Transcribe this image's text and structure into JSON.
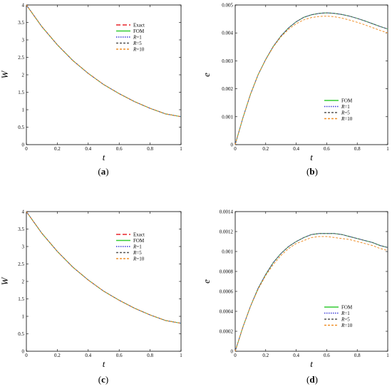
{
  "chart_data": [
    {
      "type": "line",
      "panel": "(a)",
      "xlabel": "t",
      "ylabel": "W",
      "xlim": [
        0,
        1
      ],
      "ylim": [
        0,
        4
      ],
      "xticks": [
        "0",
        "0.2",
        "0.4",
        "0.6",
        "0.8",
        "1"
      ],
      "yticks": [
        "0",
        "0.5",
        "1",
        "1.5",
        "2",
        "2.5",
        "3",
        "3.5",
        "4"
      ],
      "legend_position": "right-middle",
      "x": [
        0,
        0.1,
        0.2,
        0.3,
        0.4,
        0.5,
        0.6,
        0.7,
        0.8,
        0.9,
        1
      ],
      "series": [
        {
          "name": "Exact",
          "color": "#e8242a",
          "dash": "long-dash",
          "values": [
            4.0,
            3.38,
            2.86,
            2.41,
            2.04,
            1.72,
            1.46,
            1.23,
            1.04,
            0.88,
            0.8
          ]
        },
        {
          "name": "FOM",
          "color": "#33cc33",
          "dash": "solid",
          "values": [
            4.0,
            3.38,
            2.86,
            2.41,
            2.04,
            1.72,
            1.46,
            1.23,
            1.04,
            0.88,
            0.8
          ]
        },
        {
          "name": "R=1",
          "color": "#3a3ad6",
          "dash": "dot",
          "values": [
            4.0,
            3.38,
            2.86,
            2.41,
            2.04,
            1.72,
            1.46,
            1.23,
            1.04,
            0.88,
            0.8
          ]
        },
        {
          "name": "R=5",
          "color": "#555555",
          "dash": "dash",
          "values": [
            4.0,
            3.38,
            2.86,
            2.41,
            2.04,
            1.72,
            1.46,
            1.23,
            1.04,
            0.88,
            0.8
          ]
        },
        {
          "name": "R=10",
          "color": "#f0902a",
          "dash": "dash",
          "values": [
            4.0,
            3.38,
            2.86,
            2.41,
            2.04,
            1.72,
            1.46,
            1.23,
            1.04,
            0.88,
            0.8
          ]
        }
      ]
    },
    {
      "type": "line",
      "panel": "(b)",
      "xlabel": "t",
      "ylabel": "e",
      "xlim": [
        0,
        1
      ],
      "ylim": [
        0,
        0.005
      ],
      "xticks": [
        "0",
        "0.2",
        "0.4",
        "0.6",
        "0.8",
        "1"
      ],
      "yticks": [
        "0",
        "0.001",
        "0.002",
        "0.003",
        "0.004",
        "0.005"
      ],
      "legend_position": "bottom-right",
      "x": [
        0,
        0.05,
        0.1,
        0.15,
        0.2,
        0.25,
        0.3,
        0.35,
        0.4,
        0.45,
        0.5,
        0.55,
        0.6,
        0.65,
        0.7,
        0.75,
        0.8,
        0.85,
        0.9,
        0.95,
        1
      ],
      "series": [
        {
          "name": "FOM",
          "color": "#33cc33",
          "dash": "solid",
          "values": [
            0,
            0.00095,
            0.0018,
            0.0025,
            0.00305,
            0.00352,
            0.00389,
            0.00418,
            0.0044,
            0.00456,
            0.00465,
            0.0047,
            0.00472,
            0.0047,
            0.00466,
            0.0046,
            0.00452,
            0.00443,
            0.00433,
            0.00423,
            0.00414
          ]
        },
        {
          "name": "R=1",
          "color": "#3a3ad6",
          "dash": "dot",
          "values": [
            0,
            0.00095,
            0.0018,
            0.0025,
            0.00305,
            0.00352,
            0.00389,
            0.00418,
            0.0044,
            0.00456,
            0.00465,
            0.0047,
            0.00472,
            0.0047,
            0.00466,
            0.0046,
            0.00452,
            0.00443,
            0.00433,
            0.00423,
            0.00414
          ]
        },
        {
          "name": "R=5",
          "color": "#555555",
          "dash": "dash",
          "values": [
            0,
            0.00095,
            0.0018,
            0.0025,
            0.00305,
            0.00352,
            0.00389,
            0.00418,
            0.0044,
            0.00456,
            0.00465,
            0.0047,
            0.00472,
            0.0047,
            0.00466,
            0.0046,
            0.00452,
            0.00443,
            0.00433,
            0.00423,
            0.00414
          ]
        },
        {
          "name": "R=10",
          "color": "#f0902a",
          "dash": "dash",
          "values": [
            0,
            0.00095,
            0.0018,
            0.0025,
            0.00304,
            0.0035,
            0.00386,
            0.00413,
            0.00433,
            0.00447,
            0.00455,
            0.00459,
            0.0046,
            0.00458,
            0.00453,
            0.00446,
            0.00438,
            0.00429,
            0.00419,
            0.00409,
            0.004
          ]
        }
      ]
    },
    {
      "type": "line",
      "panel": "(c)",
      "xlabel": "t",
      "ylabel": "W",
      "xlim": [
        0,
        1
      ],
      "ylim": [
        0,
        4
      ],
      "xticks": [
        "0",
        "0.2",
        "0.4",
        "0.6",
        "0.8",
        "1"
      ],
      "yticks": [
        "0",
        "0.5",
        "1",
        "1.5",
        "2",
        "2.5",
        "3",
        "3.5",
        "4"
      ],
      "legend_position": "right-middle",
      "x": [
        0,
        0.1,
        0.2,
        0.3,
        0.4,
        0.5,
        0.6,
        0.7,
        0.8,
        0.9,
        1
      ],
      "series": [
        {
          "name": "Exact",
          "color": "#e8242a",
          "dash": "long-dash",
          "values": [
            4.0,
            3.38,
            2.86,
            2.41,
            2.04,
            1.72,
            1.46,
            1.23,
            1.04,
            0.88,
            0.8
          ]
        },
        {
          "name": "FOM",
          "color": "#33cc33",
          "dash": "solid",
          "values": [
            4.0,
            3.38,
            2.86,
            2.41,
            2.04,
            1.72,
            1.46,
            1.23,
            1.04,
            0.88,
            0.8
          ]
        },
        {
          "name": "R=1",
          "color": "#3a3ad6",
          "dash": "dot",
          "values": [
            4.0,
            3.38,
            2.86,
            2.41,
            2.04,
            1.72,
            1.46,
            1.23,
            1.04,
            0.88,
            0.8
          ]
        },
        {
          "name": "R=5",
          "color": "#555555",
          "dash": "dash",
          "values": [
            4.0,
            3.38,
            2.86,
            2.41,
            2.04,
            1.72,
            1.46,
            1.23,
            1.04,
            0.88,
            0.8
          ]
        },
        {
          "name": "R=10",
          "color": "#f0902a",
          "dash": "dash",
          "values": [
            4.0,
            3.38,
            2.86,
            2.41,
            2.04,
            1.72,
            1.46,
            1.23,
            1.04,
            0.88,
            0.8
          ]
        }
      ]
    },
    {
      "type": "line",
      "panel": "(d)",
      "xlabel": "t",
      "ylabel": "e",
      "xlim": [
        0,
        1
      ],
      "ylim": [
        0,
        0.0014
      ],
      "xticks": [
        "0",
        "0.2",
        "0.4",
        "0.6",
        "0.8",
        "1"
      ],
      "yticks": [
        "0",
        "0.0002",
        "0.0004",
        "0.0006",
        "0.0008",
        "0.001",
        "0.0012",
        "0.0014"
      ],
      "legend_position": "bottom-right",
      "x": [
        0,
        0.05,
        0.1,
        0.15,
        0.2,
        0.25,
        0.3,
        0.35,
        0.4,
        0.45,
        0.5,
        0.55,
        0.6,
        0.65,
        0.7,
        0.75,
        0.8,
        0.85,
        0.9,
        0.95,
        1
      ],
      "series": [
        {
          "name": "FOM",
          "color": "#33cc33",
          "dash": "solid",
          "values": [
            0,
            0.00024,
            0.00045,
            0.00063,
            0.00077,
            0.00089,
            0.00098,
            0.00105,
            0.0011,
            0.00114,
            0.00117,
            0.00118,
            0.00118,
            0.00118,
            0.00117,
            0.00115,
            0.00113,
            0.00111,
            0.00109,
            0.00106,
            0.00104
          ]
        },
        {
          "name": "R=1",
          "color": "#3a3ad6",
          "dash": "dot",
          "values": [
            0,
            0.00024,
            0.00045,
            0.00063,
            0.00077,
            0.00089,
            0.00098,
            0.00105,
            0.0011,
            0.00114,
            0.00117,
            0.00118,
            0.00118,
            0.00118,
            0.00117,
            0.00115,
            0.00113,
            0.00111,
            0.00109,
            0.00106,
            0.00104
          ]
        },
        {
          "name": "R=5",
          "color": "#555555",
          "dash": "dash",
          "values": [
            0,
            0.00024,
            0.00045,
            0.00063,
            0.00077,
            0.00089,
            0.00098,
            0.00105,
            0.0011,
            0.00114,
            0.00117,
            0.00118,
            0.00118,
            0.00118,
            0.00117,
            0.00115,
            0.00113,
            0.00111,
            0.00109,
            0.00106,
            0.00104
          ]
        },
        {
          "name": "R=10",
          "color": "#f0902a",
          "dash": "dash",
          "values": [
            0,
            0.00024,
            0.00045,
            0.00062,
            0.00076,
            0.00087,
            0.00096,
            0.00103,
            0.00108,
            0.00111,
            0.00114,
            0.00115,
            0.00115,
            0.00114,
            0.00113,
            0.00112,
            0.0011,
            0.00108,
            0.00106,
            0.00103,
            0.00101
          ]
        }
      ]
    }
  ]
}
